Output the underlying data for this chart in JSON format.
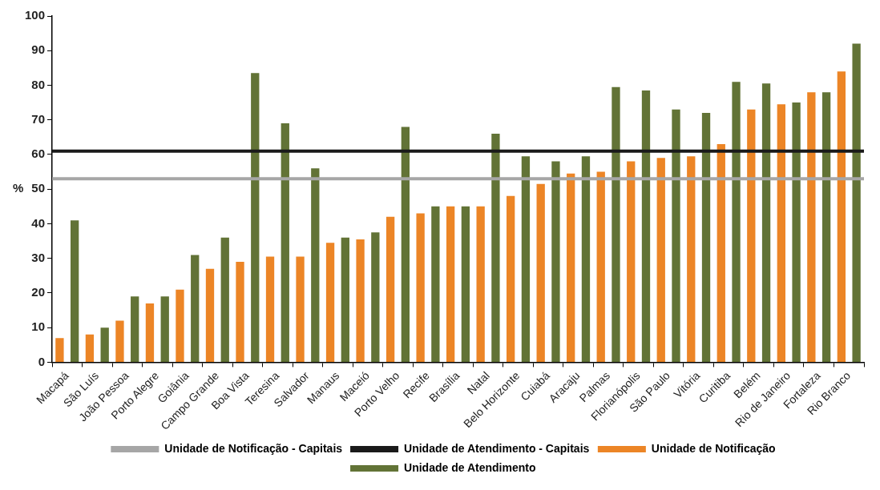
{
  "chart_data": {
    "type": "bar",
    "ylabel": "%",
    "categories": [
      "Macapá",
      "São Luís",
      "João Pessoa",
      "Porto Alegre",
      "Goiânia",
      "Campo Grande",
      "Boa Vista",
      "Teresina",
      "Salvador",
      "Manaus",
      "Maceió",
      "Porto Velho",
      "Recife",
      "Brasília",
      "Natal",
      "Belo Horizonte",
      "Cuiabá",
      "Aracaju",
      "Palmas",
      "Florianópolis",
      "São Paulo",
      "Vitória",
      "Curitiba",
      "Belém",
      "Rio de Janeiro",
      "Fortaleza",
      "Rio Branco"
    ],
    "series": [
      {
        "name": "Unidade de Notificação",
        "color": "#ec8526",
        "values": [
          7,
          8,
          12,
          17,
          21,
          27,
          29,
          30.5,
          30.5,
          34.5,
          35.5,
          42,
          43,
          45,
          45,
          48,
          51.5,
          54.5,
          55,
          58,
          59,
          59.5,
          63,
          73,
          74.5,
          78,
          84
        ]
      },
      {
        "name": "Unidade de Atendimento",
        "color": "#627336",
        "values": [
          41,
          10,
          19,
          19,
          31,
          36,
          83.5,
          69,
          56,
          36,
          37.5,
          68,
          45,
          45,
          66,
          59.5,
          58,
          59.5,
          79.5,
          78.5,
          73,
          72,
          81,
          80.5,
          75,
          78,
          92
        ]
      }
    ],
    "ref_lines": [
      {
        "axis": "y",
        "value": 53,
        "label": "Unidade de Notificação - Capitais",
        "color": "#a6a6a6"
      },
      {
        "axis": "y",
        "value": 61,
        "label": "Unidade de Atendimento - Capitais",
        "color": "#1a1a1a"
      }
    ],
    "ylim": [
      0,
      100
    ],
    "yticks": [
      0,
      10,
      20,
      30,
      40,
      50,
      60,
      70,
      80,
      90,
      100
    ],
    "grid": false,
    "legend": "bottom"
  }
}
